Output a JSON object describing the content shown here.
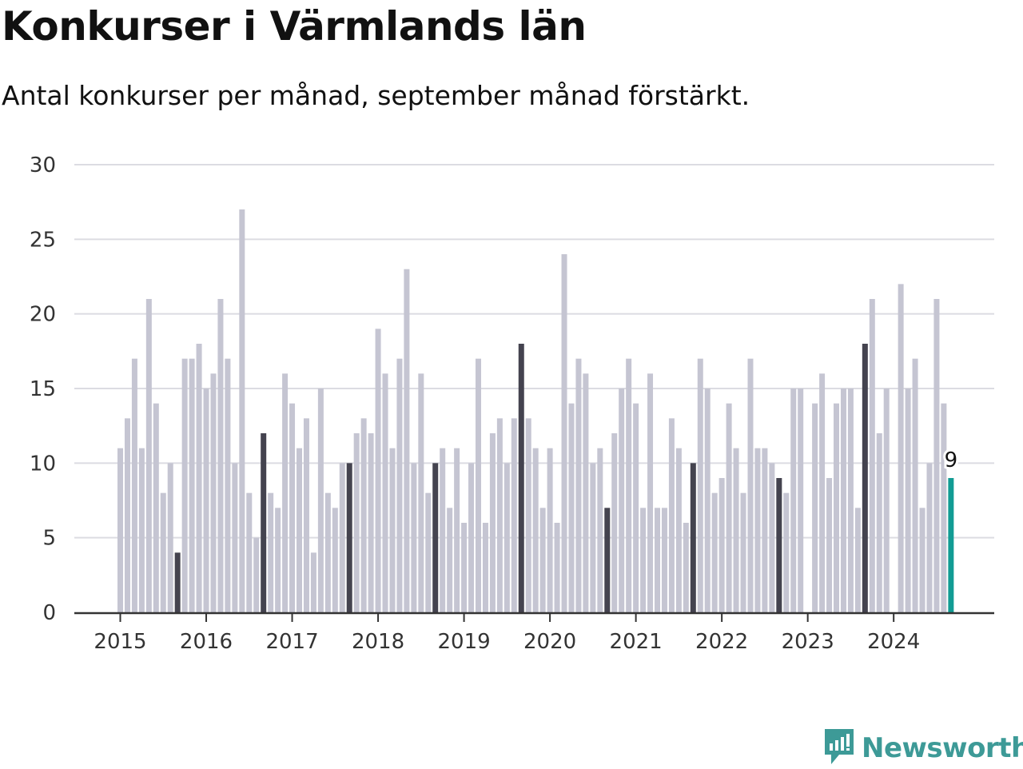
{
  "title": "Konkurser i Värmlands län",
  "subtitle": "Antal konkurser per månad, september månad förstärkt.",
  "brand": {
    "name": "Newsworthy",
    "logo_icon": "newsworthy-logo-icon"
  },
  "colors": {
    "bar_default": "#c5c5d2",
    "bar_highlight": "#44434f",
    "bar_latest": "#129c94",
    "grid": "#dcdce2",
    "axis": "#333333",
    "brand": "#3d9a97"
  },
  "chart_data": {
    "type": "bar",
    "start_month": "2015-01",
    "ylim": [
      0,
      30
    ],
    "yticks": [
      0,
      5,
      10,
      15,
      20,
      25,
      30
    ],
    "xticks": [
      "2015",
      "2016",
      "2017",
      "2018",
      "2019",
      "2020",
      "2021",
      "2022",
      "2023",
      "2024"
    ],
    "grid": true,
    "highlight_month": "September",
    "values": [
      11,
      13,
      17,
      11,
      21,
      14,
      8,
      10,
      4,
      17,
      17,
      18,
      15,
      16,
      21,
      17,
      10,
      27,
      8,
      5,
      12,
      8,
      7,
      16,
      14,
      11,
      13,
      4,
      15,
      8,
      7,
      10,
      10,
      12,
      13,
      12,
      19,
      16,
      11,
      17,
      23,
      10,
      16,
      8,
      10,
      11,
      7,
      11,
      6,
      10,
      17,
      6,
      12,
      13,
      10,
      13,
      18,
      13,
      11,
      7,
      11,
      6,
      24,
      14,
      17,
      16,
      10,
      11,
      7,
      12,
      15,
      17,
      14,
      7,
      16,
      7,
      7,
      13,
      11,
      6,
      10,
      17,
      15,
      8,
      9,
      14,
      11,
      8,
      17,
      11,
      11,
      10,
      9,
      8,
      15,
      15,
      0,
      14,
      16,
      9,
      14,
      15,
      15,
      7,
      18,
      21,
      12,
      15,
      0,
      22,
      15,
      17,
      7,
      10,
      21,
      14,
      9
    ],
    "latest_label": "9"
  }
}
